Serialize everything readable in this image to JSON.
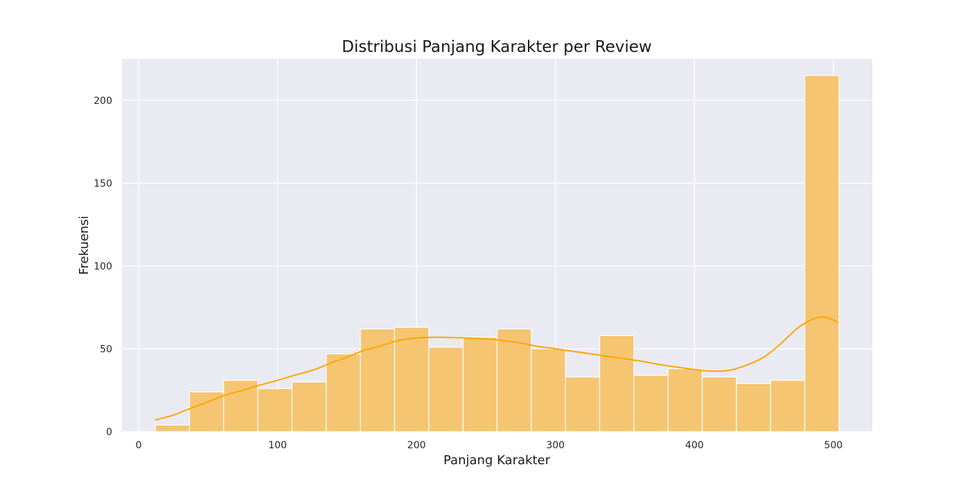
{
  "chart_data": {
    "type": "histogram",
    "title": "Distribusi Panjang Karakter per Review",
    "xlabel": "Panjang Karakter",
    "ylabel": "Frekuensi",
    "xlim": [
      -12,
      528
    ],
    "ylim": [
      0,
      225
    ],
    "xticks": [
      0,
      100,
      200,
      300,
      400,
      500
    ],
    "yticks": [
      0,
      50,
      100,
      150,
      200
    ],
    "grid": true,
    "colors": {
      "bar_fill": "#f5c572",
      "bar_edge": "#ffffff",
      "kde_line": "#ffa500",
      "plot_background": "#eaeaf2",
      "grid": "#ffffff"
    },
    "bins": [
      {
        "x0": 12.0,
        "x1": 36.6,
        "count": 4
      },
      {
        "x0": 36.6,
        "x1": 61.2,
        "count": 24
      },
      {
        "x0": 61.2,
        "x1": 85.8,
        "count": 31
      },
      {
        "x0": 85.8,
        "x1": 110.4,
        "count": 26
      },
      {
        "x0": 110.4,
        "x1": 135.0,
        "count": 30
      },
      {
        "x0": 135.0,
        "x1": 159.6,
        "count": 47
      },
      {
        "x0": 159.6,
        "x1": 184.2,
        "count": 62
      },
      {
        "x0": 184.2,
        "x1": 208.8,
        "count": 63
      },
      {
        "x0": 208.8,
        "x1": 233.4,
        "count": 51
      },
      {
        "x0": 233.4,
        "x1": 258.0,
        "count": 57
      },
      {
        "x0": 258.0,
        "x1": 282.6,
        "count": 62
      },
      {
        "x0": 282.6,
        "x1": 307.2,
        "count": 50
      },
      {
        "x0": 307.2,
        "x1": 331.8,
        "count": 33
      },
      {
        "x0": 331.8,
        "x1": 356.4,
        "count": 58
      },
      {
        "x0": 356.4,
        "x1": 381.0,
        "count": 34
      },
      {
        "x0": 381.0,
        "x1": 405.6,
        "count": 38
      },
      {
        "x0": 405.6,
        "x1": 430.2,
        "count": 33
      },
      {
        "x0": 430.2,
        "x1": 454.8,
        "count": 29
      },
      {
        "x0": 454.8,
        "x1": 479.4,
        "count": 31
      },
      {
        "x0": 479.4,
        "x1": 504.0,
        "count": 215
      }
    ],
    "kde": {
      "x": [
        12,
        25,
        37,
        50,
        62,
        75,
        87,
        100,
        112,
        125,
        137,
        150,
        162,
        175,
        187,
        200,
        212,
        225,
        237,
        250,
        262,
        275,
        287,
        300,
        312,
        325,
        337,
        350,
        362,
        375,
        387,
        400,
        412,
        425,
        437,
        450,
        462,
        475,
        487,
        495,
        503
      ],
      "y": [
        7,
        10,
        14,
        18,
        22,
        25,
        28,
        31,
        34,
        37,
        41,
        45,
        49,
        52,
        55,
        56.5,
        57,
        56.8,
        56.5,
        56,
        55,
        53.5,
        51.5,
        50,
        48.5,
        47,
        45.5,
        44,
        42.5,
        40.5,
        39,
        37.5,
        36.5,
        37,
        40,
        45,
        53,
        63,
        68.5,
        69,
        66
      ]
    }
  }
}
